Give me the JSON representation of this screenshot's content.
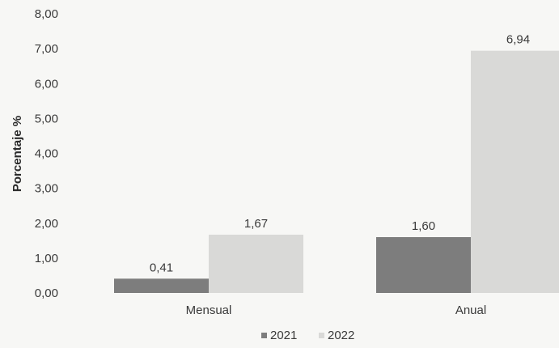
{
  "chart_data": {
    "type": "bar",
    "ylabel": "Porcentaje %",
    "xlabel": "",
    "ylim": [
      0,
      8
    ],
    "yticks": [
      "0,00",
      "1,00",
      "2,00",
      "3,00",
      "4,00",
      "5,00",
      "6,00",
      "7,00",
      "8,00"
    ],
    "categories": [
      "Mensual",
      "Anual"
    ],
    "series": [
      {
        "name": "2021",
        "values": [
          0.41,
          1.6
        ],
        "labels": [
          "0,41",
          "1,60"
        ],
        "color": "#7d7d7d"
      },
      {
        "name": "2022",
        "values": [
          1.67,
          6.94
        ],
        "labels": [
          "1,67",
          "6,94"
        ],
        "color": "#d9d9d7"
      }
    ],
    "grid": false,
    "legend_position": "bottom"
  }
}
